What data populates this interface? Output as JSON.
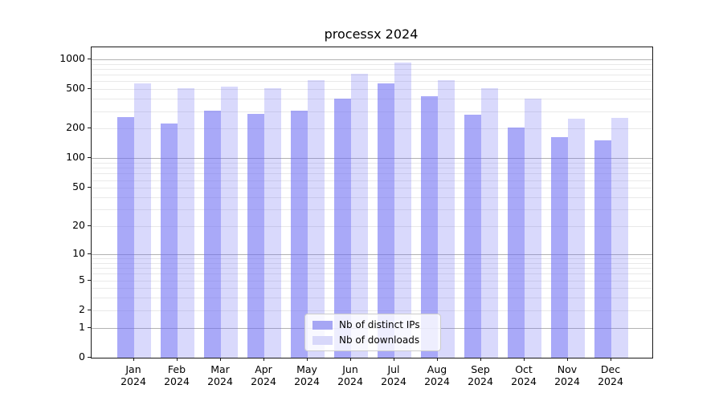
{
  "chart_data": {
    "type": "bar",
    "title": "processx 2024",
    "categories": [
      "Jan 2024",
      "Feb 2024",
      "Mar 2024",
      "Apr 2024",
      "May 2024",
      "Jun 2024",
      "Jul 2024",
      "Aug 2024",
      "Sep 2024",
      "Oct 2024",
      "Nov 2024",
      "Dec 2024"
    ],
    "series": [
      {
        "name": "Nb of distinct IPs",
        "legend_color": "#a6a6f4",
        "fill": "rgba(108,108,243,0.59)",
        "values": [
          262,
          224,
          304,
          282,
          305,
          404,
          569,
          425,
          279,
          206,
          163,
          153
        ]
      },
      {
        "name": "Nb of downloads",
        "legend_color": "#d8d8fa",
        "fill": "rgba(108,108,243,0.26)",
        "values": [
          575,
          514,
          534,
          514,
          613,
          715,
          922,
          617,
          513,
          404,
          254,
          257
        ]
      }
    ],
    "yscale": "log10(value+1)",
    "yticks": [
      0,
      1,
      2,
      5,
      10,
      20,
      50,
      100,
      200,
      500,
      1000
    ],
    "ylim": [
      0,
      1100
    ],
    "xlabel": "",
    "ylabel": "",
    "grid": "horizontal, major and minor",
    "legend_position": "lower center",
    "colors": {
      "major_grid": "rgba(0,0,0,0.30)",
      "minor_grid": "rgba(0,0,0,0.085)",
      "spine": "#1a1a1a",
      "background": "#ffffff"
    }
  }
}
